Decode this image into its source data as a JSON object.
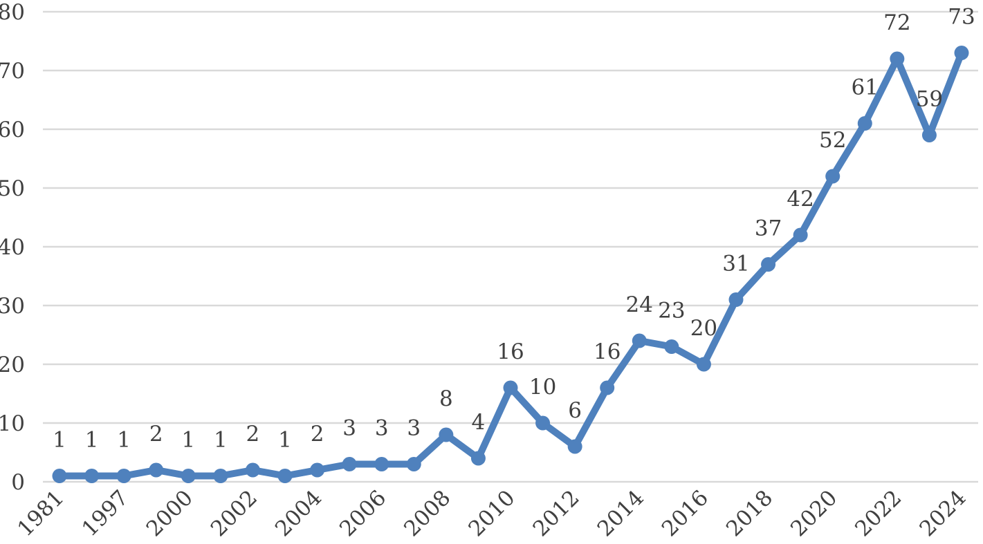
{
  "chart_data": {
    "type": "line",
    "title": "",
    "xlabel": "",
    "ylabel": "",
    "ylim": [
      0,
      80
    ],
    "yticks": [
      0,
      10,
      20,
      30,
      40,
      50,
      60,
      70,
      80
    ],
    "grid": true,
    "legend": "none",
    "color": "#4f81bd",
    "x_tick_labels": [
      "1981",
      "1997",
      "2000",
      "2002",
      "2004",
      "2006",
      "2008",
      "2010",
      "2012",
      "2014",
      "2016",
      "2018",
      "2020",
      "2022",
      "2024"
    ],
    "x_tick_label_indices": [
      0,
      2,
      4,
      6,
      8,
      10,
      12,
      14,
      16,
      18,
      20,
      22,
      24,
      26,
      28
    ],
    "series": [
      {
        "values": [
          1,
          1,
          1,
          2,
          1,
          1,
          2,
          1,
          2,
          3,
          3,
          3,
          8,
          4,
          16,
          10,
          6,
          16,
          24,
          23,
          20,
          31,
          37,
          42,
          52,
          61,
          72,
          59,
          73
        ]
      }
    ]
  }
}
